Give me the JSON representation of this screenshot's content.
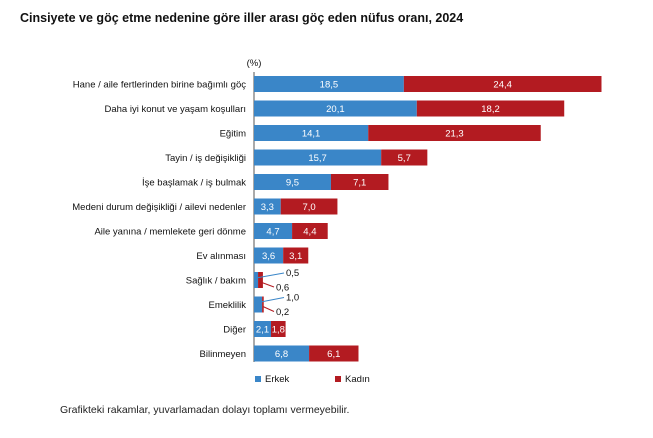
{
  "title": "Cinsiyete ve göç etme nedenine göre iller arası göç eden nüfus oranı, 2024",
  "footnote": "Grafikteki rakamlar, yuvarlamadan dolayı toplamı vermeyebilir.",
  "chart_data": {
    "type": "bar",
    "orientation": "horizontal",
    "stacked": true,
    "unit_label": "(%)",
    "categories": [
      "Hane / aile fertlerinden birine bağımlı göç",
      "Daha iyi konut ve yaşam koşulları",
      "Eğitim",
      "Tayin / iş değişikliği",
      "İşe başlamak / iş bulmak",
      "Medeni durum değişikliği / ailevi nedenler",
      "Aile yanına / memlekete geri dönme",
      "Ev alınması",
      "Sağlık / bakım",
      "Emeklilik",
      "Diğer",
      "Bilinmeyen"
    ],
    "series": [
      {
        "name": "Erkek",
        "color": "#3a86c8",
        "values": [
          18.5,
          20.1,
          14.1,
          15.7,
          9.5,
          3.3,
          4.7,
          3.6,
          0.5,
          1.0,
          2.1,
          6.8
        ],
        "labels": [
          "18,5",
          "20,1",
          "14,1",
          "15,7",
          "9,5",
          "3,3",
          "4,7",
          "3,6",
          "0,5",
          "1,0",
          "2,1",
          "6,8"
        ]
      },
      {
        "name": "Kadın",
        "color": "#b31b21",
        "values": [
          24.4,
          18.2,
          21.3,
          5.7,
          7.1,
          7.0,
          4.4,
          3.1,
          0.6,
          0.2,
          1.8,
          6.1
        ],
        "labels": [
          "24,4",
          "18,2",
          "21,3",
          "5,7",
          "7,1",
          "7,0",
          "4,4",
          "3,1",
          "0,6",
          "0,2",
          "1,8",
          "6,1"
        ]
      }
    ],
    "legend_position": "bottom",
    "grid": false
  }
}
